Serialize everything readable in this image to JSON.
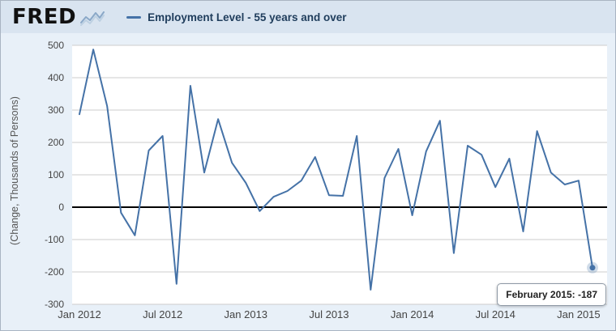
{
  "header": {
    "logo_text": "FRED",
    "legend_label": "Employment Level - 55 years and over"
  },
  "tooltip": {
    "label": "February 2015:",
    "value": "-187"
  },
  "colors": {
    "line": "#4572a7",
    "grid": "#cccccc",
    "zero_line": "#000000",
    "axis_text": "#444444",
    "header_bg": "#d9e4f0",
    "chart_bg": "#e8f0f8",
    "plot_bg": "#ffffff"
  },
  "chart_data": {
    "type": "line",
    "series_name": "Employment Level - 55 years and over",
    "ylabel": "(Change, Thousands of Persons)",
    "ylim": [
      -300,
      500
    ],
    "y_ticks": [
      500,
      400,
      300,
      200,
      100,
      0,
      -100,
      -200,
      -300
    ],
    "x_tick_labels": [
      "Jan 2012",
      "Jul 2012",
      "Jan 2013",
      "Jul 2013",
      "Jan 2014",
      "Jul 2014",
      "Jan 2015"
    ],
    "x_tick_indices": [
      0,
      6,
      12,
      18,
      24,
      30,
      36
    ],
    "x": [
      "Jan 2012",
      "Feb 2012",
      "Mar 2012",
      "Apr 2012",
      "May 2012",
      "Jun 2012",
      "Jul 2012",
      "Aug 2012",
      "Sep 2012",
      "Oct 2012",
      "Nov 2012",
      "Dec 2012",
      "Jan 2013",
      "Feb 2013",
      "Mar 2013",
      "Apr 2013",
      "May 2013",
      "Jun 2013",
      "Jul 2013",
      "Aug 2013",
      "Sep 2013",
      "Oct 2013",
      "Nov 2013",
      "Dec 2013",
      "Jan 2014",
      "Feb 2014",
      "Mar 2014",
      "Apr 2014",
      "May 2014",
      "Jun 2014",
      "Jul 2014",
      "Aug 2014",
      "Sep 2014",
      "Oct 2014",
      "Nov 2014",
      "Dec 2014",
      "Jan 2015",
      "Feb 2015"
    ],
    "values": [
      287,
      487,
      312,
      -17,
      -87,
      175,
      220,
      -237,
      375,
      107,
      272,
      137,
      75,
      -12,
      32,
      50,
      82,
      155,
      37,
      35,
      220,
      -255,
      90,
      180,
      -25,
      172,
      267,
      -142,
      190,
      162,
      62,
      150,
      -75,
      235,
      107,
      70,
      82,
      -187
    ],
    "highlight_point": {
      "x": "Feb 2015",
      "value": -187
    }
  }
}
